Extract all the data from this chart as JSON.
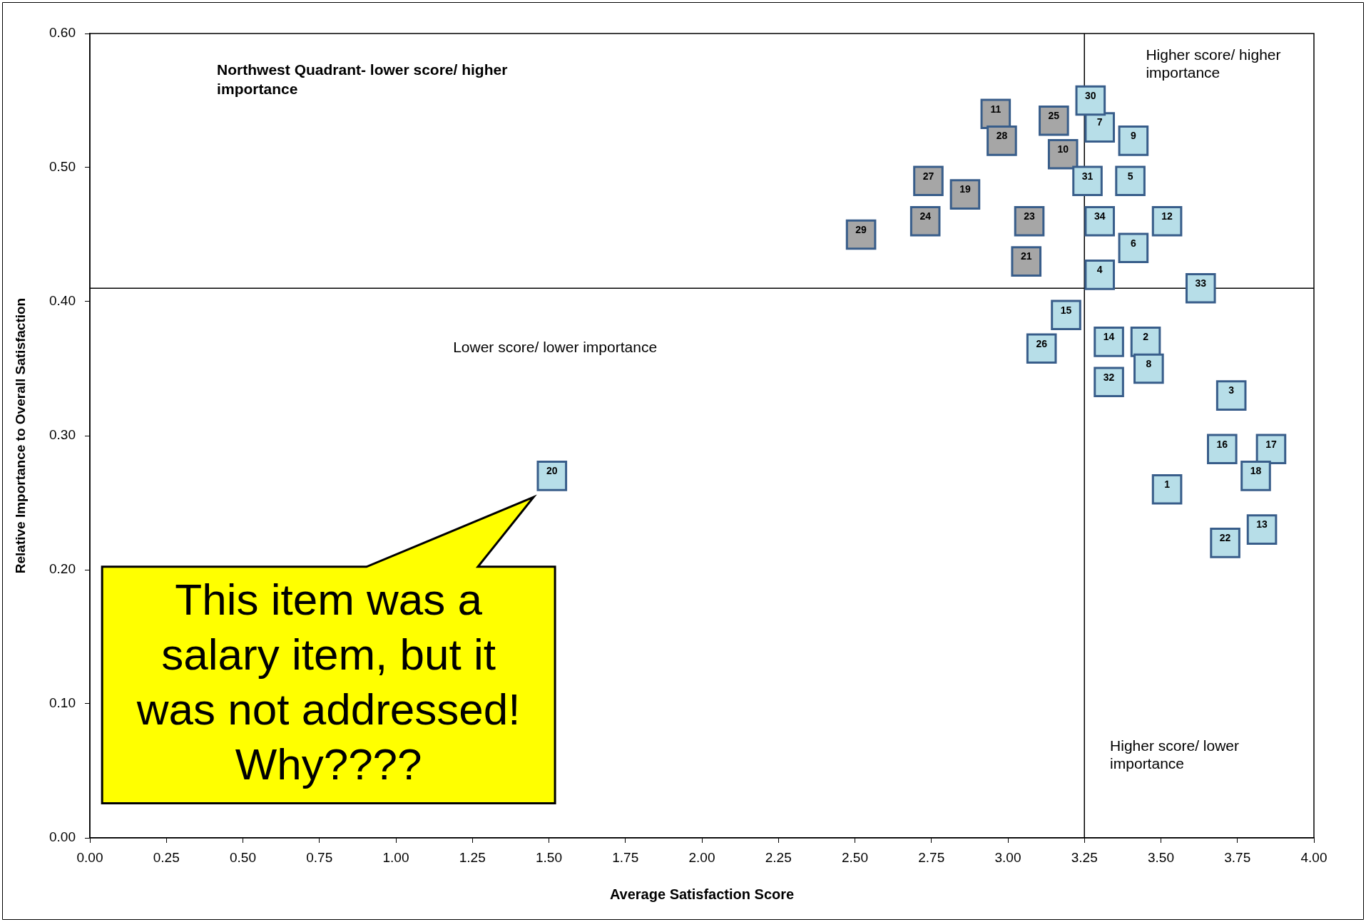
{
  "chart_data": {
    "type": "scatter",
    "xlabel": "Average Satisfaction Score",
    "ylabel": "Relative Importance to Overall Satisfaction",
    "xlim": [
      0,
      4
    ],
    "xticks": [
      {
        "value": 0,
        "label": "0.00"
      },
      0.25,
      {
        "value": 0.5,
        "label": "0.50"
      },
      0.75,
      {
        "value": 1,
        "label": "1.00"
      },
      1.25,
      {
        "value": 1.5,
        "label": "1.50"
      },
      1.75,
      {
        "value": 2,
        "label": "2.00"
      },
      2.25,
      {
        "value": 2.5,
        "label": "2.50"
      },
      2.75,
      {
        "value": 3,
        "label": "3.00"
      },
      3.25,
      {
        "value": 3.5,
        "label": "3.50"
      },
      3.75,
      {
        "value": 4,
        "label": "4.00"
      }
    ],
    "ylim": [
      0,
      0.6
    ],
    "yticks": [
      {
        "value": 0,
        "label": "0.00"
      },
      {
        "value": 0.1,
        "label": "0.10"
      },
      {
        "value": 0.2,
        "label": "0.20"
      },
      {
        "value": 0.3,
        "label": "0.30"
      },
      {
        "value": 0.4,
        "label": "0.40"
      },
      {
        "value": 0.5,
        "label": "0.50"
      },
      {
        "value": 0.6,
        "label": "0.60"
      }
    ],
    "grid": false,
    "legend": false,
    "marker": "square",
    "series": [
      {
        "color": "#b7dee8",
        "x": [
          3.52,
          3.45,
          3.73,
          3.3,
          3.4,
          3.41,
          3.3,
          3.46,
          3.41,
          3.52,
          3.83,
          3.33,
          3.19,
          3.7,
          3.86,
          3.81,
          1.51,
          3.71,
          3.11,
          3.27,
          3.26,
          3.33,
          3.63,
          3.3
        ],
        "values": [
          0.26,
          0.37,
          0.33,
          0.42,
          0.49,
          0.44,
          0.53,
          0.35,
          0.52,
          0.46,
          0.23,
          0.37,
          0.39,
          0.29,
          0.29,
          0.27,
          0.27,
          0.22,
          0.365,
          0.55,
          0.49,
          0.34,
          0.41,
          0.46
        ]
      },
      {
        "color": "#a6a6a6",
        "x": [
          3.18,
          2.96,
          2.86,
          3.06,
          3.07,
          2.73,
          3.15,
          2.74,
          2.98,
          2.52
        ],
        "values": [
          0.51,
          0.54,
          0.48,
          0.43,
          0.46,
          0.46,
          0.535,
          0.49,
          0.52,
          0.45
        ]
      }
    ],
    "ref_lines": [
      {
        "axis": "x",
        "value": 3.25
      },
      {
        "axis": "y",
        "value": 0.41
      }
    ],
    "annotations": [
      "Northwest Quadrant- lower score/ higher importance",
      "Higher score/ higher importance",
      "Lower score/ lower importance",
      "Higher score/ lower importance",
      {
        "text": "This item was a salary item, but it was not addressed! Why????",
        "x": 1.51,
        "y": 0.27
      },
      {
        "text": "1",
        "x": 3.52,
        "y": 0.26
      },
      {
        "text": "2",
        "x": 3.45,
        "y": 0.37
      },
      {
        "text": "3",
        "x": 3.73,
        "y": 0.33
      },
      {
        "text": "4",
        "x": 3.3,
        "y": 0.42
      },
      {
        "text": "5",
        "x": 3.4,
        "y": 0.49
      },
      {
        "text": "6",
        "x": 3.41,
        "y": 0.44
      },
      {
        "text": "7",
        "x": 3.3,
        "y": 0.53
      },
      {
        "text": "8",
        "x": 3.46,
        "y": 0.35
      },
      {
        "text": "9",
        "x": 3.41,
        "y": 0.52
      },
      {
        "text": "12",
        "x": 3.52,
        "y": 0.46
      },
      {
        "text": "13",
        "x": 3.83,
        "y": 0.23
      },
      {
        "text": "14",
        "x": 3.33,
        "y": 0.37
      },
      {
        "text": "15",
        "x": 3.19,
        "y": 0.39
      },
      {
        "text": "16",
        "x": 3.7,
        "y": 0.29
      },
      {
        "text": "17",
        "x": 3.86,
        "y": 0.29
      },
      {
        "text": "18",
        "x": 3.81,
        "y": 0.27
      },
      {
        "text": "20",
        "x": 1.51,
        "y": 0.27
      },
      {
        "text": "22",
        "x": 3.71,
        "y": 0.22
      },
      {
        "text": "26",
        "x": 3.11,
        "y": 0.365
      },
      {
        "text": "30",
        "x": 3.27,
        "y": 0.55
      },
      {
        "text": "31",
        "x": 3.26,
        "y": 0.49
      },
      {
        "text": "32",
        "x": 3.33,
        "y": 0.34
      },
      {
        "text": "33",
        "x": 3.63,
        "y": 0.41
      },
      {
        "text": "34",
        "x": 3.3,
        "y": 0.46
      },
      {
        "text": "10",
        "x": 3.18,
        "y": 0.51
      },
      {
        "text": "11",
        "x": 2.96,
        "y": 0.54
      },
      {
        "text": "19",
        "x": 2.86,
        "y": 0.48
      },
      {
        "text": "21",
        "x": 3.06,
        "y": 0.43
      },
      {
        "text": "23",
        "x": 3.07,
        "y": 0.46
      },
      {
        "text": "24",
        "x": 2.73,
        "y": 0.46
      },
      {
        "text": "25",
        "x": 3.15,
        "y": 0.535
      },
      {
        "text": "27",
        "x": 2.74,
        "y": 0.49
      },
      {
        "text": "28",
        "x": 2.98,
        "y": 0.52
      },
      {
        "text": "29",
        "x": 2.52,
        "y": 0.45
      }
    ]
  }
}
